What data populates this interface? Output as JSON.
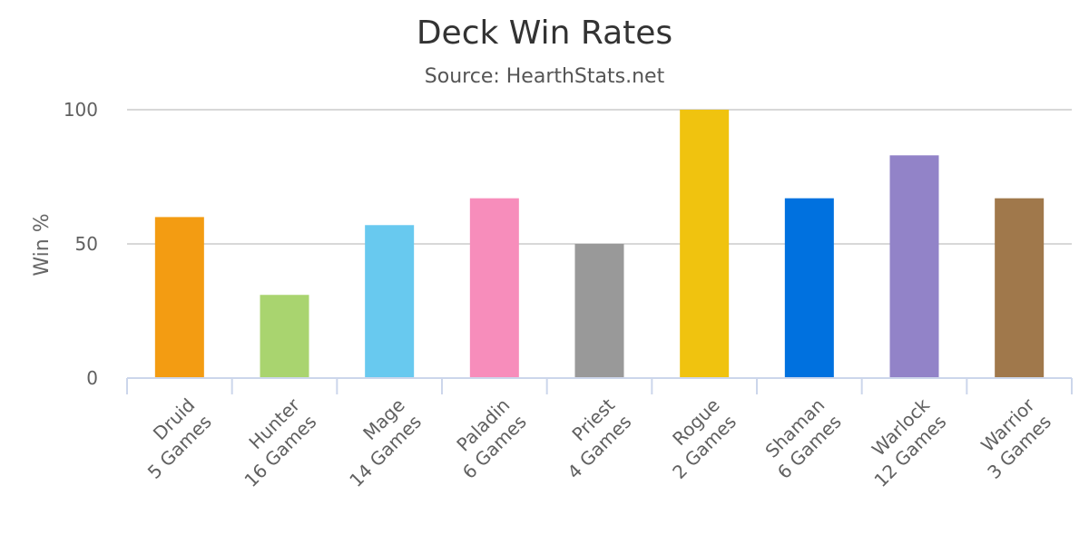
{
  "chart_data": {
    "type": "bar",
    "title": "Deck Win Rates",
    "subtitle": "Source: HearthStats.net",
    "xlabel": "",
    "ylabel": "Win %",
    "ylim": [
      0,
      100
    ],
    "yticks": [
      "0",
      "50",
      "100"
    ],
    "grid": true,
    "categories": [
      [
        "Druid",
        "5 Games"
      ],
      [
        "Hunter",
        "16 Games"
      ],
      [
        "Mage",
        "14 Games"
      ],
      [
        "Paladin",
        "6 Games"
      ],
      [
        "Priest",
        "4 Games"
      ],
      [
        "Rogue",
        "2 Games"
      ],
      [
        "Shaman",
        "6 Games"
      ],
      [
        "Warlock",
        "12 Games"
      ],
      [
        "Warrior",
        "3 Games"
      ]
    ],
    "values": [
      60,
      31,
      57,
      67,
      50,
      100,
      67,
      83,
      67
    ],
    "colors": [
      "#f39c12",
      "#a9d46f",
      "#68c9ef",
      "#f78dbb",
      "#999999",
      "#f0c30f",
      "#0071df",
      "#9283c8",
      "#a0784b"
    ]
  }
}
